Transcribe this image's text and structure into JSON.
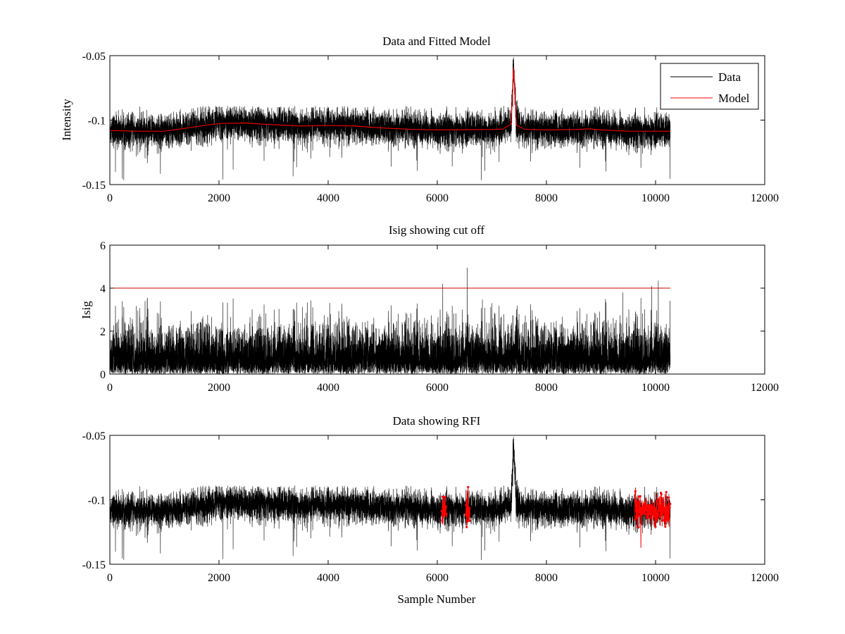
{
  "figure": {
    "background": "#ffffff"
  },
  "chart_data": [
    {
      "type": "line",
      "title": "Data and Fitted Model",
      "xlabel": "",
      "ylabel": "Intensity",
      "xlim": [
        0,
        12000
      ],
      "ylim": [
        -0.15,
        -0.05
      ],
      "y_reversed": true,
      "xticks": [
        "0",
        "2000",
        "4000",
        "6000",
        "8000",
        "10000",
        "12000"
      ],
      "yticks": [
        "-0.05",
        "-0.1",
        "-0.15"
      ],
      "ytick_values": [
        -0.05,
        -0.1,
        -0.15
      ],
      "legend": {
        "placement": "top-right",
        "entries": [
          "Data",
          "Model"
        ]
      },
      "series": [
        {
          "name": "Data",
          "color": "#000000",
          "kind": "noisy-trace",
          "n_samples": 10270,
          "baseline_x": [
            0,
            500,
            1000,
            1500,
            2000,
            2500,
            3000,
            3500,
            4000,
            4500,
            5000,
            5500,
            6000,
            6500,
            7000,
            7200,
            7350,
            7400,
            7450,
            7600,
            8000,
            8500,
            9000,
            9500,
            10000,
            10270
          ],
          "baseline_y": [
            -0.1078,
            -0.1085,
            -0.1085,
            -0.1055,
            -0.1025,
            -0.1022,
            -0.1035,
            -0.1045,
            -0.104,
            -0.1045,
            -0.106,
            -0.107,
            -0.1075,
            -0.1073,
            -0.1072,
            -0.1068,
            -0.103,
            -0.057,
            -0.104,
            -0.107,
            -0.1075,
            -0.1072,
            -0.1075,
            -0.1085,
            -0.1085,
            -0.1085
          ],
          "noise_sigma": 0.0062,
          "y_range": [
            -0.147,
            -0.057
          ]
        },
        {
          "name": "Model",
          "color": "#ff0000",
          "kind": "line",
          "x": [
            0,
            500,
            1000,
            1500,
            2000,
            2500,
            3000,
            3500,
            4000,
            4500,
            5000,
            5500,
            6000,
            6500,
            7000,
            7200,
            7350,
            7400,
            7450,
            7600,
            8000,
            8500,
            8800,
            9000,
            9500,
            10000,
            10270
          ],
          "y": [
            -0.108,
            -0.1086,
            -0.1086,
            -0.1056,
            -0.1026,
            -0.1023,
            -0.1036,
            -0.1046,
            -0.1041,
            -0.1046,
            -0.1061,
            -0.1071,
            -0.1076,
            -0.1074,
            -0.1073,
            -0.1069,
            -0.1032,
            -0.059,
            -0.104,
            -0.1071,
            -0.1076,
            -0.1073,
            -0.1068,
            -0.1076,
            -0.1086,
            -0.1086,
            -0.1086
          ]
        }
      ]
    },
    {
      "type": "line",
      "title": "Isig showing cut off",
      "xlabel": "",
      "ylabel": "Isig",
      "xlim": [
        0,
        12000
      ],
      "ylim": [
        0,
        6
      ],
      "y_reversed": false,
      "xticks": [
        "0",
        "2000",
        "4000",
        "6000",
        "8000",
        "10000",
        "12000"
      ],
      "yticks": [
        "0",
        "2",
        "4",
        "6"
      ],
      "ytick_values": [
        0,
        2,
        4,
        6
      ],
      "series": [
        {
          "color": "#000000",
          "kind": "abs-noise",
          "n_samples": 10270,
          "y_range": [
            0,
            4.95
          ],
          "spikes_x": [
            6550,
            6100,
            10050,
            9930,
            7000,
            9400
          ],
          "spikes_y": [
            4.95,
            4.2,
            4.35,
            4.1,
            3.3,
            3.8
          ]
        },
        {
          "color": "#cc0000",
          "kind": "cutoff-line",
          "x": [
            0,
            10270
          ],
          "y": [
            4,
            4
          ]
        }
      ]
    },
    {
      "type": "line",
      "title": "Data showing RFI",
      "xlabel": "Sample Number",
      "ylabel": "",
      "xlim": [
        0,
        12000
      ],
      "ylim": [
        -0.15,
        -0.05
      ],
      "y_reversed": true,
      "xticks": [
        "0",
        "2000",
        "4000",
        "6000",
        "8000",
        "10000",
        "12000"
      ],
      "yticks": [
        "-0.05",
        "-0.1",
        "-0.15"
      ],
      "ytick_values": [
        -0.05,
        -0.1,
        -0.15
      ],
      "series": [
        {
          "color": "#000000",
          "kind": "noisy-trace",
          "n_samples": 10270,
          "same_as_panel1_data": true
        },
        {
          "color": "#ff0000",
          "kind": "flagged-points",
          "segments": [
            [
              6080,
              6170
            ],
            [
              6520,
              6600
            ],
            [
              9620,
              10270
            ]
          ]
        }
      ]
    }
  ]
}
